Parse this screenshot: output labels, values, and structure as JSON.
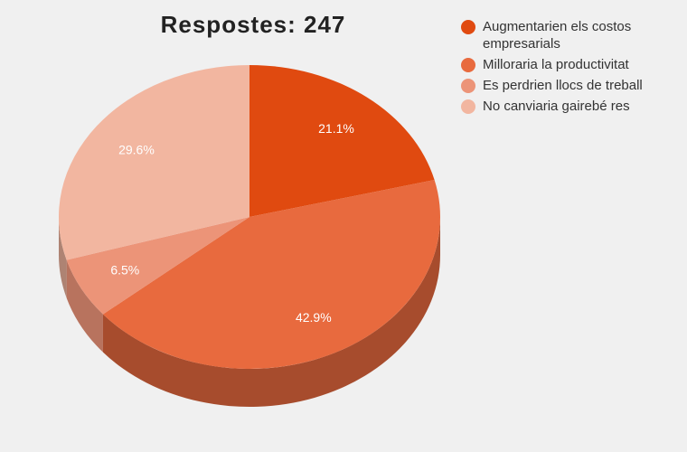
{
  "chart_data": {
    "type": "pie",
    "title": "Respostes: 247",
    "labels": [
      "Augmentarien els costos empresarials",
      "Milloraria la productivitat",
      "Es perdrien llocs de treball",
      "No canviaria gairebé res"
    ],
    "values": [
      21.1,
      42.9,
      6.5,
      29.6
    ],
    "value_labels": [
      "21.1%",
      "42.9%",
      "6.5%",
      "29.6%"
    ],
    "colors": [
      "#e04a10",
      "#e86a3e",
      "#ec9478",
      "#f2b6a0"
    ],
    "legend_position": "top-right",
    "style": "3d"
  }
}
